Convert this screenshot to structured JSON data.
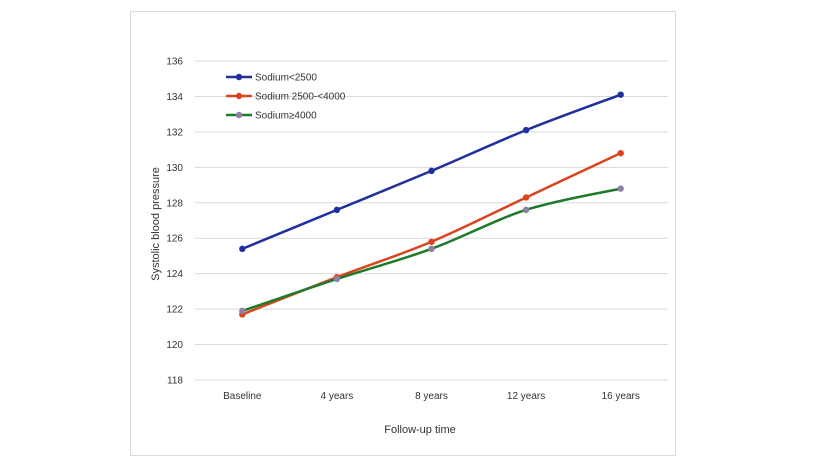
{
  "chart_data": {
    "type": "line",
    "title": "",
    "xlabel": "Follow-up time",
    "ylabel": "Systolic blood pressure",
    "categories": [
      "Baseline",
      "4 years",
      "8 years",
      "12 years",
      "16 years"
    ],
    "ylim": [
      118,
      136
    ],
    "yticks": [
      118,
      120,
      122,
      124,
      126,
      128,
      130,
      132,
      134,
      136
    ],
    "grid": true,
    "legend_position": "top-left",
    "series": [
      {
        "name": "Sodium<2500",
        "color": "#1f2f9e",
        "marker_color": "#1f2f9e",
        "values": [
          125.4,
          127.6,
          129.8,
          132.1,
          134.1
        ]
      },
      {
        "name": "Sodium 2500-<4000",
        "color": "#d9441e",
        "marker_color": "#d9441e",
        "values": [
          121.7,
          123.8,
          125.8,
          128.3,
          130.8
        ]
      },
      {
        "name": "Sodium≥4000",
        "color": "#1e7a2a",
        "marker_color": "#8e7fa6",
        "values": [
          121.9,
          123.7,
          125.4,
          127.6,
          128.8
        ]
      }
    ]
  }
}
